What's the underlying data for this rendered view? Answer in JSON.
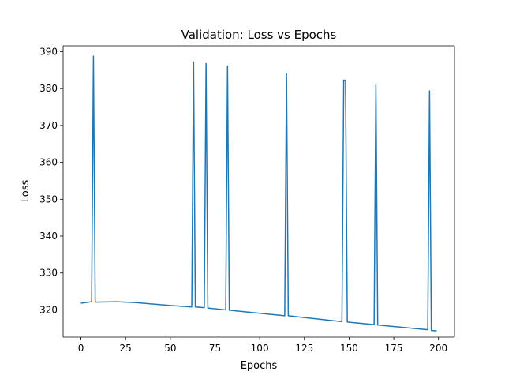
{
  "chart_data": {
    "type": "line",
    "title": "Validation: Loss vs Epochs",
    "xlabel": "Epochs",
    "ylabel": "Loss",
    "xlim": [
      -9.95,
      208.95
    ],
    "ylim": [
      312.6,
      391.6
    ],
    "xticks": [
      0,
      25,
      50,
      75,
      100,
      125,
      150,
      175,
      200
    ],
    "yticks": [
      320,
      330,
      340,
      350,
      360,
      370,
      380,
      390
    ],
    "grid": false,
    "legend": "none",
    "series": [
      {
        "color": "#1f77b4",
        "points": [
          [
            0,
            321.8
          ],
          [
            6,
            322.2
          ],
          [
            7,
            388.8
          ],
          [
            8,
            322.1
          ],
          [
            20,
            322.2
          ],
          [
            30,
            322.0
          ],
          [
            40,
            321.6
          ],
          [
            50,
            321.2
          ],
          [
            62,
            320.8
          ],
          [
            63,
            387.2
          ],
          [
            64,
            320.8
          ],
          [
            69,
            320.6
          ],
          [
            70,
            386.8
          ],
          [
            71,
            320.5
          ],
          [
            81,
            320.0
          ],
          [
            82,
            386.1
          ],
          [
            83,
            319.9
          ],
          [
            114,
            318.4
          ],
          [
            115,
            384.1
          ],
          [
            116,
            318.4
          ],
          [
            146,
            316.8
          ],
          [
            147,
            382.3
          ],
          [
            148,
            382.2
          ],
          [
            149,
            316.7
          ],
          [
            164,
            316.0
          ],
          [
            165,
            381.2
          ],
          [
            166,
            315.9
          ],
          [
            194,
            314.6
          ],
          [
            195,
            379.4
          ],
          [
            196,
            314.4
          ],
          [
            199,
            314.3
          ]
        ]
      }
    ]
  }
}
